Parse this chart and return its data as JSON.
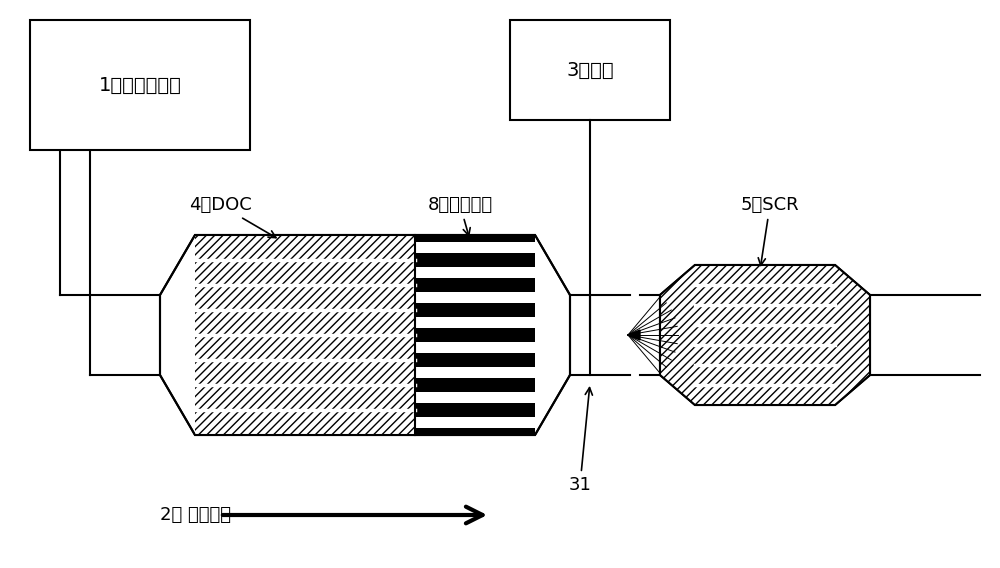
{
  "bg_color": "#ffffff",
  "line_color": "#000000",
  "box1_label": "1：柴油发动机",
  "box3_label": "3：尿素",
  "label_doc": "4：DOC",
  "label_dpf": "8：捕获机构",
  "label_scr": "5：SCR",
  "label_flow": "2： 废气流路",
  "label_31": "31",
  "font_size": 13
}
